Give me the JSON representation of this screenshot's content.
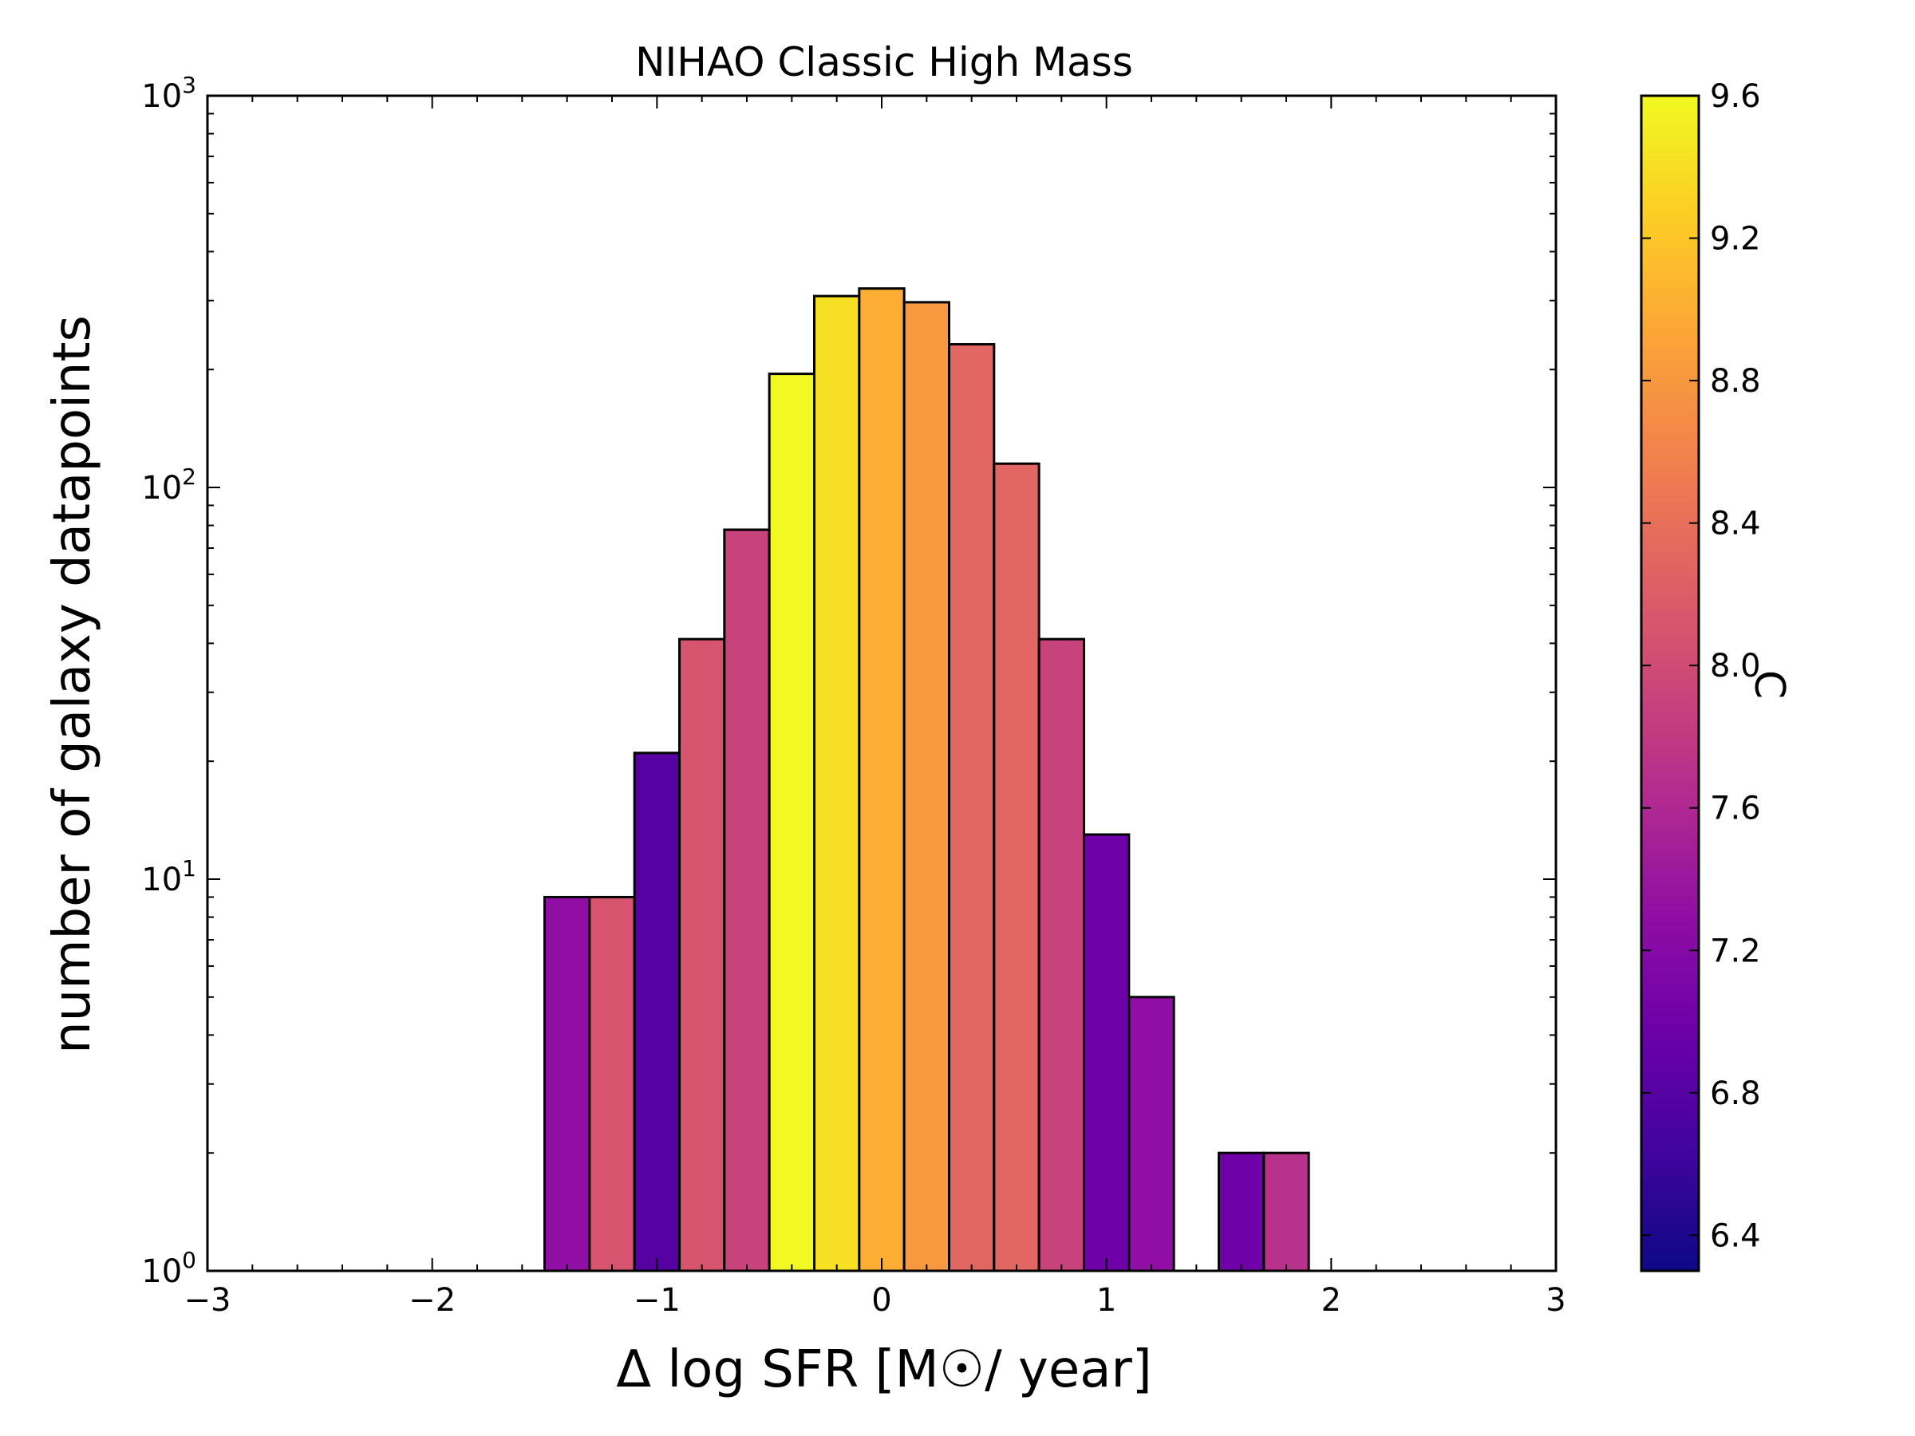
{
  "chart_data": {
    "type": "bar",
    "title": "NIHAO Classic High Mass",
    "xlabel": "Δ log SFR [M☉/ year]",
    "ylabel": "number of galaxy datapoints",
    "xlim": [
      -3,
      3
    ],
    "ylim": [
      1,
      1000
    ],
    "yscale": "log",
    "grid": false,
    "x_ticks": [
      "−3",
      "−2",
      "−1",
      "0",
      "1",
      "2",
      "3"
    ],
    "x_tick_values": [
      -3,
      -2,
      -1,
      0,
      1,
      2,
      3
    ],
    "y_ticks": [
      {
        "base": "10",
        "exp": "0",
        "value": 1
      },
      {
        "base": "10",
        "exp": "1",
        "value": 10
      },
      {
        "base": "10",
        "exp": "2",
        "value": 100
      },
      {
        "base": "10",
        "exp": "3",
        "value": 1000
      }
    ],
    "bin_width": 0.2,
    "bars": [
      {
        "x": -1.4,
        "count": 9,
        "color_value": 7.3
      },
      {
        "x": -1.2,
        "count": 9,
        "color_value": 8.1
      },
      {
        "x": -1.0,
        "count": 21,
        "color_value": 6.8
      },
      {
        "x": -0.8,
        "count": 41,
        "color_value": 8.1
      },
      {
        "x": -0.6,
        "count": 78,
        "color_value": 7.9
      },
      {
        "x": -0.4,
        "count": 195,
        "color_value": 9.6
      },
      {
        "x": -0.2,
        "count": 308,
        "color_value": 9.4
      },
      {
        "x": 0.0,
        "count": 322,
        "color_value": 9.0
      },
      {
        "x": 0.2,
        "count": 297,
        "color_value": 8.8
      },
      {
        "x": 0.4,
        "count": 232,
        "color_value": 8.3
      },
      {
        "x": 0.6,
        "count": 115,
        "color_value": 8.3
      },
      {
        "x": 0.8,
        "count": 41,
        "color_value": 7.9
      },
      {
        "x": 1.0,
        "count": 13,
        "color_value": 7.0
      },
      {
        "x": 1.2,
        "count": 5,
        "color_value": 7.3
      },
      {
        "x": 1.6,
        "count": 2,
        "color_value": 7.0
      },
      {
        "x": 1.8,
        "count": 2,
        "color_value": 7.7
      }
    ],
    "colorbar": {
      "label": "C",
      "colormap": "plasma",
      "range": [
        6.3,
        9.6
      ],
      "ticks": [
        "6.4",
        "6.8",
        "7.2",
        "7.6",
        "8.0",
        "8.4",
        "8.8",
        "9.2",
        "9.6"
      ],
      "tick_values": [
        6.4,
        6.8,
        7.2,
        7.6,
        8.0,
        8.4,
        8.8,
        9.2,
        9.6
      ]
    }
  }
}
